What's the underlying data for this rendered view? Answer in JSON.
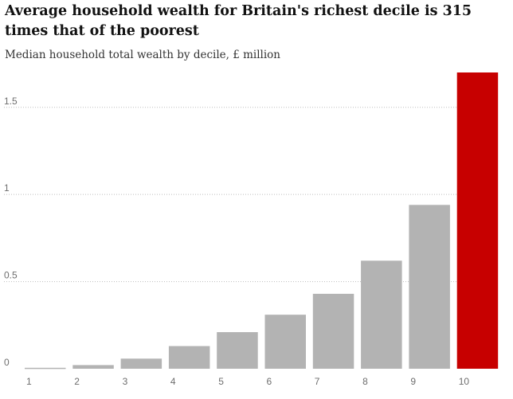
{
  "title": "Average household wealth for Britain's richest decile is 315 times that of the poorest",
  "subtitle": "Median household total wealth by decile, £ million",
  "chart_data": {
    "type": "bar",
    "title": "Average household wealth for Britain's richest decile is 315 times that of the poorest",
    "subtitle": "Median household total wealth by decile, £ million",
    "categories": [
      "1",
      "2",
      "3",
      "4",
      "5",
      "6",
      "7",
      "8",
      "9",
      "10"
    ],
    "values": [
      0.0054,
      0.021,
      0.058,
      0.13,
      0.21,
      0.31,
      0.43,
      0.62,
      0.94,
      1.7
    ],
    "highlight_index": 9,
    "colors": {
      "bar": "#b3b3b3",
      "highlight": "#c70000",
      "gridline": "#bdbdbd"
    },
    "y_ticks": [
      0,
      0.5,
      1,
      1.5
    ],
    "y_tick_labels": [
      "0",
      "0.5",
      "1",
      "1.5"
    ],
    "ylim": [
      0,
      1.7
    ],
    "grid": true
  }
}
